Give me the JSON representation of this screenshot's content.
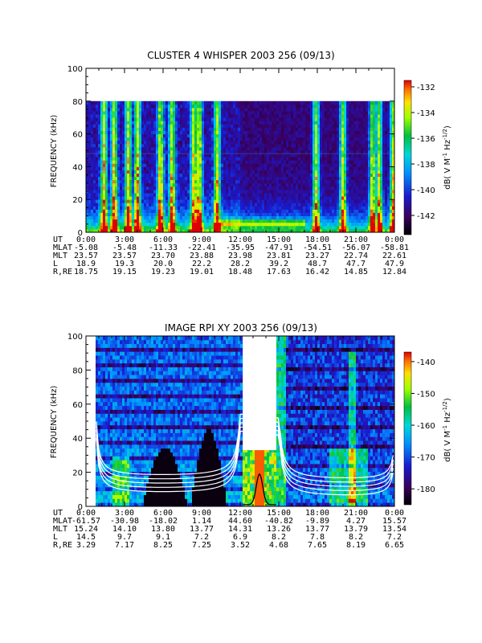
{
  "chart_data": [
    {
      "type": "heatmap",
      "title": "CLUSTER 4 WHISPER 2003 256 (09/13)",
      "ylabel": "FREQUENCY (kHz)",
      "ylim": [
        0,
        100
      ],
      "yticks": [
        "0",
        "20",
        "40",
        "60",
        "80",
        "100"
      ],
      "xlim_hours": [
        0,
        24
      ],
      "data_ceiling_khz": 80,
      "colorbar": {
        "label": "dB( V M^-1 Hz^-1/2 )",
        "range": [
          -143.5,
          -131.5
        ],
        "ticks": [
          "-132",
          "-134",
          "-136",
          "-138",
          "-140",
          "-142"
        ],
        "tick_values": [
          -132,
          -134,
          -136,
          -138,
          -140,
          -142
        ]
      },
      "ephemeris": {
        "labels": [
          "UT",
          "MLAT",
          "MLT",
          "L",
          "R,RE"
        ],
        "rows": [
          [
            "0:00",
            "3:00",
            "6:00",
            "9:00",
            "12:00",
            "15:00",
            "18:00",
            "21:00",
            "0:00"
          ],
          [
            "-5.08",
            "-5.48",
            "-11.33",
            "-22.41",
            "-35.95",
            "-47.91",
            "-54.51",
            "-56.07",
            "-58.81"
          ],
          [
            "23.57",
            "23.57",
            "23.70",
            "23.88",
            "23.98",
            "23.81",
            "23.27",
            "22.74",
            "22.61"
          ],
          [
            "18.9",
            "19.3",
            "20.0",
            "22.2",
            "28.2",
            "39.2",
            "48.7",
            "47.7",
            "47.9"
          ],
          [
            "18.75",
            "19.15",
            "19.23",
            "19.01",
            "18.48",
            "17.63",
            "16.42",
            "14.85",
            "12.84"
          ]
        ]
      },
      "emission_bursts_ut_hours": [
        1.4,
        2.2,
        3.3,
        4.0,
        5.8,
        6.7,
        8.4,
        8.8,
        10.2,
        17.9,
        20.0,
        22.3,
        22.8,
        23.9
      ]
    },
    {
      "type": "heatmap",
      "title": "IMAGE RPI XY 2003 256 (09/13)",
      "ylabel": "FREQUENCY (kHz)",
      "ylim": [
        0,
        100
      ],
      "yticks": [
        "0",
        "20",
        "40",
        "60",
        "80",
        "100"
      ],
      "xlim_hours": [
        0,
        24
      ],
      "data_gap_ut_hours": [
        12.2,
        14.8
      ],
      "colorbar": {
        "label": "dB( V M^-1 Hz^-1/2 )",
        "range": [
          -185,
          -137
        ],
        "ticks": [
          "-140",
          "-150",
          "-160",
          "-170",
          "-180"
        ],
        "tick_values": [
          -140,
          -150,
          -160,
          -170,
          -180
        ]
      },
      "ephemeris": {
        "labels": [
          "UT",
          "MLAT",
          "MLT",
          "L",
          "R,RE"
        ],
        "rows": [
          [
            "0:00",
            "3:00",
            "6:00",
            "9:00",
            "12:00",
            "15:00",
            "18:00",
            "21:00",
            "0:00"
          ],
          [
            "-61.57",
            "-30.98",
            "-18.02",
            "1.14",
            "44.60",
            "-40.82",
            "-9.89",
            "4.27",
            "15.57"
          ],
          [
            "15.24",
            "14.10",
            "13.80",
            "13.77",
            "14.31",
            "13.26",
            "13.77",
            "13.79",
            "13.54"
          ],
          [
            "14.5",
            "9.7",
            "9.1",
            "7.2",
            "6.9",
            "8.2",
            "7.8",
            "8.2",
            "7.2"
          ],
          [
            "3.29",
            "7.17",
            "8.25",
            "7.25",
            "3.52",
            "4.68",
            "7.65",
            "8.19",
            "6.65"
          ]
        ]
      }
    }
  ]
}
